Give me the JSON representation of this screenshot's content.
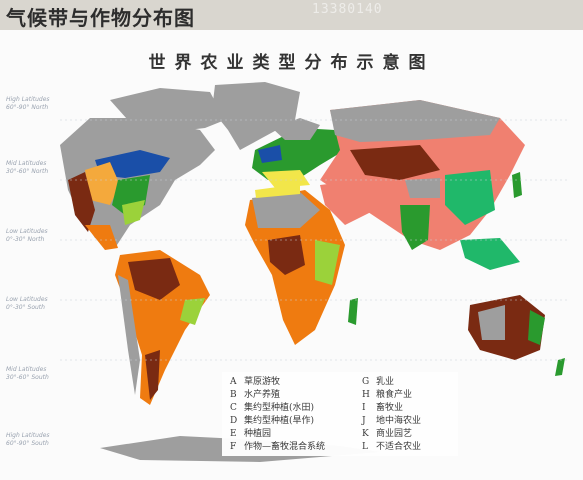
{
  "slide": {
    "title": "气候带与作物分布图",
    "code": "13380140"
  },
  "map": {
    "title": "世界农业类型分布示意图",
    "latitude_bands": [
      {
        "line1": "High Latitudes",
        "line2": "60°-90° North"
      },
      {
        "line1": "Mid Latitudes",
        "line2": "30°-60° North"
      },
      {
        "line1": "Low Latitudes",
        "line2": "0°-30° North"
      },
      {
        "line1": "Low Latitudes",
        "line2": "0°-30° South"
      },
      {
        "line1": "Mid Latitudes",
        "line2": "30°-60° South"
      },
      {
        "line1": "High Latitudes",
        "line2": "60°-90° South"
      }
    ],
    "legend": {
      "left": [
        {
          "code": "A",
          "label": "草原游牧"
        },
        {
          "code": "B",
          "label": "水产养殖"
        },
        {
          "code": "C",
          "label": "集约型种植(水田)"
        },
        {
          "code": "D",
          "label": "集约型种植(旱作)"
        },
        {
          "code": "E",
          "label": "种植园"
        },
        {
          "code": "F",
          "label": "作物—畜牧混合系统"
        }
      ],
      "right": [
        {
          "code": "G",
          "label": "乳业"
        },
        {
          "code": "H",
          "label": "粮食产业"
        },
        {
          "code": "I",
          "label": "畜牧业"
        },
        {
          "code": "J",
          "label": "地中海农业"
        },
        {
          "code": "K",
          "label": "商业园艺"
        },
        {
          "code": "L",
          "label": "不适合农业"
        }
      ]
    },
    "colors": {
      "unsuitable": "#9e9e9e",
      "nomadic_herding": "#f08070",
      "shifting": "#7a2a12",
      "livestock_ranching": "#ef7b10",
      "grain": "#f4a93c",
      "dairy": "#1a4fa8",
      "mixed": "#2a9a2e",
      "plantation": "#9bd23a",
      "mediterranean": "#f2e64a",
      "rice": "#20b86a",
      "horticulture": "#25b9d4",
      "ocean": "#fbfbfb"
    }
  }
}
